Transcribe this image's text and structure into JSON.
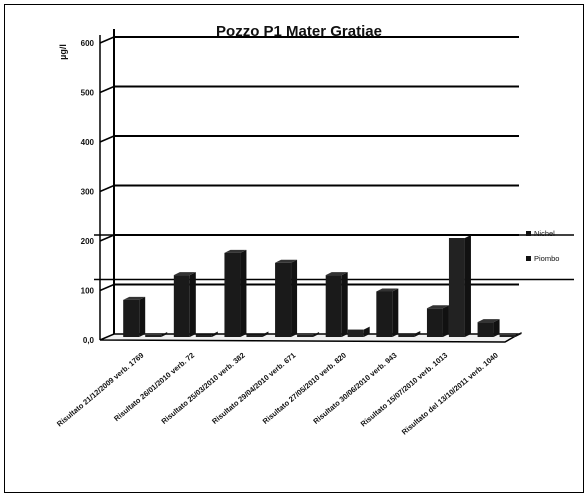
{
  "chart_data": {
    "type": "bar",
    "title": "Pozzo P1 Mater Gratiae",
    "ylabel": "µg/l",
    "ylim": [
      0,
      600
    ],
    "yticks": [
      "0,0",
      "100",
      "200",
      "300",
      "400",
      "500",
      "600"
    ],
    "categories": [
      "Risultato 21/12/2009 verb. 1769",
      "Risultato 26/01/2010 verb. 72",
      "Risultato 25/03/2010 verb. 382",
      "Risultato 29/04/2010 verb. 671",
      "Risultato 27/05/2010 verb. 820",
      "Risultato 30/06/2010 verb. 943",
      "Risultato 15/07/2010 verb. 1013",
      "Risultato del 13/10/2011 verb. 1040"
    ],
    "series": [
      {
        "name": "Nichel",
        "values": [
          75,
          125,
          170,
          150,
          125,
          92,
          58,
          30
        ]
      },
      {
        "name": "Piombo",
        "values": [
          3,
          5,
          5,
          4,
          15,
          6,
          200,
          4
        ]
      }
    ],
    "reference_lines": [
      200,
      110
    ],
    "grid": true,
    "legend": "right"
  }
}
